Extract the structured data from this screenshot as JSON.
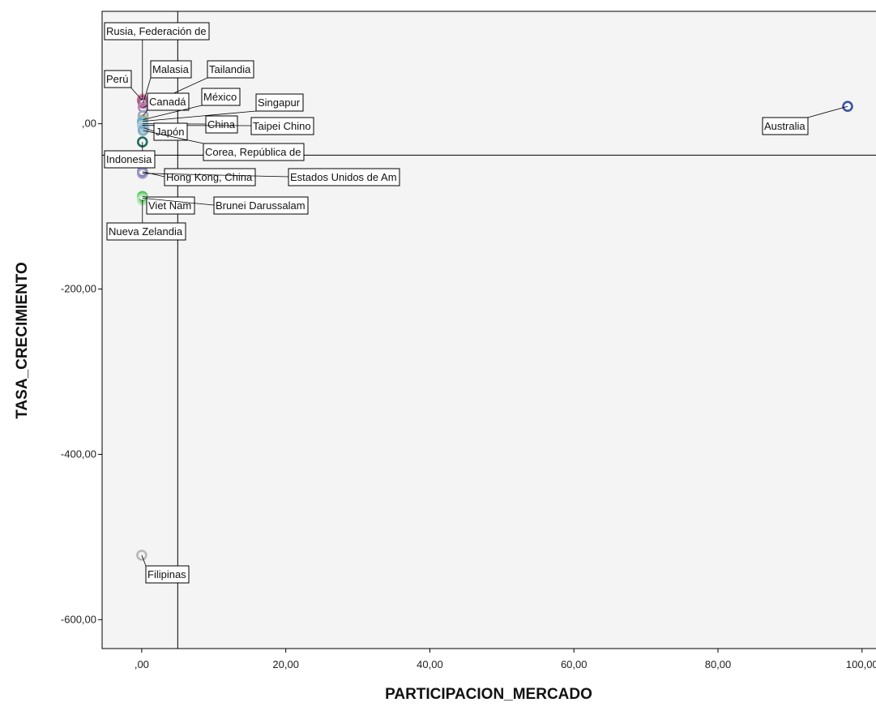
{
  "chart_data": {
    "type": "scatter",
    "title": "",
    "xlabel": "PARTICIPACION_MERCADO",
    "ylabel": "TASA_CRECIMIENTO",
    "xlim": [
      -5.5,
      102.5
    ],
    "ylim": [
      -635,
      136
    ],
    "x_ticks": [
      ",00",
      "20,00",
      "40,00",
      "60,00",
      "80,00",
      "100,00"
    ],
    "x_tick_values": [
      0,
      20,
      40,
      60,
      80,
      100
    ],
    "y_ticks": [
      ",00",
      "-200,00",
      "-400,00",
      "-600,00"
    ],
    "y_tick_values": [
      0,
      -200,
      -400,
      -600
    ],
    "grid": false,
    "reference_lines": {
      "x": 5,
      "y": -38
    },
    "points": [
      {
        "name": "Rusia, Federación de",
        "x": 0.1,
        "y": 30,
        "color": "#e8a0b0"
      },
      {
        "name": "Perú",
        "x": 0.1,
        "y": 28,
        "color": "#c65f8e"
      },
      {
        "name": "Malasia",
        "x": 0.2,
        "y": 25,
        "color": "#a35d8e"
      },
      {
        "name": "Tailandia",
        "x": 0.2,
        "y": 20,
        "color": "#b889b7"
      },
      {
        "name": "Canadá",
        "x": 0.2,
        "y": 10,
        "color": "#9aa6c9"
      },
      {
        "name": "México",
        "x": 0.2,
        "y": 5,
        "color": "#c9b98a"
      },
      {
        "name": "Singapur",
        "x": 0.1,
        "y": 3,
        "color": "#7fb0b8"
      },
      {
        "name": "China",
        "x": 0.1,
        "y": 0,
        "color": "#5fa7c4"
      },
      {
        "name": "Taipei Chino",
        "x": 0.1,
        "y": -2,
        "color": "#a7cfd8"
      },
      {
        "name": "Japón",
        "x": 0.3,
        "y": -5,
        "color": "#9fc7e2"
      },
      {
        "name": "Corea, República de",
        "x": 0.2,
        "y": -8,
        "color": "#88a9c2"
      },
      {
        "name": "Indonesia",
        "x": 0.1,
        "y": -22,
        "color": "#1f6e5f"
      },
      {
        "name": "Hong Kong, China",
        "x": 0.1,
        "y": -58,
        "color": "#7d79b5"
      },
      {
        "name": "Estados Unidos de Am",
        "x": 0.1,
        "y": -60,
        "color": "#9b98c8"
      },
      {
        "name": "Viet Nam",
        "x": 0.1,
        "y": -88,
        "color": "#4cc85d"
      },
      {
        "name": "Brunei Darussalam",
        "x": 0.1,
        "y": -90,
        "color": "#88d88f"
      },
      {
        "name": "Nueva Zelandia",
        "x": 0.1,
        "y": -92,
        "color": "#b3e6b7"
      },
      {
        "name": "Australia",
        "x": 98,
        "y": 21,
        "color": "#3a54a8"
      },
      {
        "name": "Filipinas",
        "x": 0,
        "y": -522,
        "color": "#b8b8b8"
      }
    ]
  }
}
